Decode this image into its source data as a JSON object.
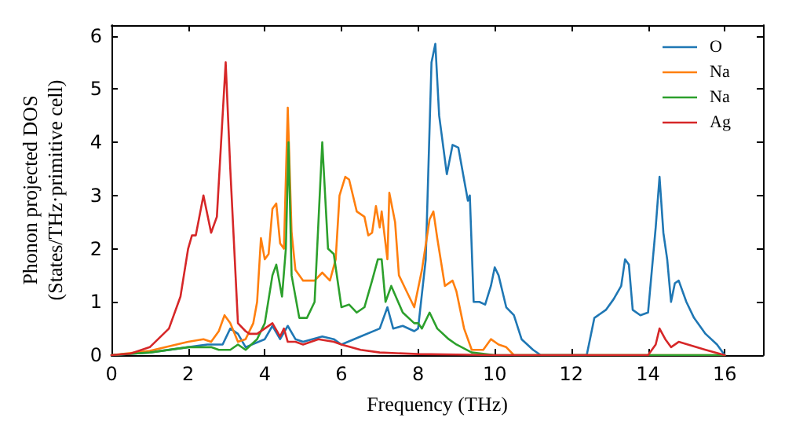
{
  "chart_data": {
    "type": "line",
    "xlabel": "Frequency (THz)",
    "ylabel": "Phonon projected DOS\n(States/THz·primitive cell)",
    "xlim": [
      0,
      17
    ],
    "xticks": [
      0,
      2,
      4,
      6,
      8,
      10,
      12,
      14,
      16
    ],
    "ylim": [
      0,
      6.2
    ],
    "yticks": [
      0,
      1,
      2,
      3,
      4,
      5,
      6
    ],
    "grid": false,
    "legend": "top right",
    "marker": "none",
    "line_style": "solid",
    "series": [
      {
        "name": "O",
        "color": "#1f77b4",
        "x": [
          0,
          1,
          2,
          2.5,
          2.9,
          3.1,
          3.3,
          3.5,
          4,
          4.2,
          4.4,
          4.6,
          4.8,
          5,
          5.5,
          5.8,
          6,
          6.5,
          7,
          7.2,
          7.35,
          7.6,
          7.9,
          8,
          8.2,
          8.35,
          8.45,
          8.55,
          8.75,
          8.9,
          9.05,
          9.2,
          9.3,
          9.35,
          9.45,
          9.6,
          9.75,
          9.9,
          10,
          10.1,
          10.2,
          10.3,
          10.5,
          10.7,
          11,
          11.2,
          12.4,
          12.6,
          12.9,
          13.1,
          13.3,
          13.4,
          13.5,
          13.6,
          13.8,
          14,
          14.2,
          14.3,
          14.4,
          14.5,
          14.6,
          14.7,
          14.8,
          15,
          15.2,
          15.5,
          15.8,
          16
        ],
        "values": [
          0,
          0.05,
          0.15,
          0.2,
          0.2,
          0.5,
          0.4,
          0.15,
          0.3,
          0.55,
          0.3,
          0.55,
          0.3,
          0.25,
          0.35,
          0.3,
          0.2,
          0.35,
          0.5,
          0.9,
          0.5,
          0.55,
          0.45,
          0.5,
          1.8,
          5.5,
          5.85,
          4.5,
          3.4,
          3.95,
          3.9,
          3.3,
          2.9,
          3,
          1,
          1,
          0.95,
          1.3,
          1.65,
          1.5,
          1.2,
          0.9,
          0.75,
          0.3,
          0.1,
          0,
          0,
          0.7,
          0.85,
          1.05,
          1.3,
          1.8,
          1.7,
          0.85,
          0.75,
          0.8,
          2.4,
          3.35,
          2.3,
          1.8,
          1,
          1.35,
          1.4,
          1,
          0.7,
          0.4,
          0.2,
          0
        ]
      },
      {
        "name": "Na",
        "color": "#ff7f0e",
        "x": [
          0,
          1,
          2,
          2.4,
          2.6,
          2.8,
          2.95,
          3.1,
          3.3,
          3.5,
          3.7,
          3.8,
          3.9,
          4,
          4.1,
          4.2,
          4.3,
          4.4,
          4.5,
          4.6,
          4.7,
          4.8,
          5,
          5.3,
          5.5,
          5.7,
          5.85,
          5.95,
          6.1,
          6.2,
          6.4,
          6.6,
          6.7,
          6.8,
          6.9,
          7,
          7.05,
          7.2,
          7.25,
          7.4,
          7.5,
          7.7,
          7.9,
          8.1,
          8.3,
          8.4,
          8.5,
          8.7,
          8.9,
          9,
          9.2,
          9.4,
          9.7,
          9.9,
          10.1,
          10.3,
          10.5,
          11,
          16
        ],
        "values": [
          0,
          0.08,
          0.25,
          0.3,
          0.25,
          0.45,
          0.75,
          0.6,
          0.25,
          0.3,
          0.6,
          1,
          2.2,
          1.8,
          1.9,
          2.75,
          2.85,
          2.1,
          2,
          4.65,
          2.3,
          1.6,
          1.4,
          1.4,
          1.55,
          1.4,
          1.8,
          3,
          3.35,
          3.3,
          2.7,
          2.6,
          2.25,
          2.3,
          2.8,
          2.4,
          2.7,
          1.8,
          3.05,
          2.5,
          1.5,
          1.2,
          0.9,
          1.6,
          2.55,
          2.7,
          2.2,
          1.3,
          1.4,
          1.2,
          0.5,
          0.1,
          0.1,
          0.3,
          0.2,
          0.15,
          0,
          0,
          0
        ]
      },
      {
        "name": "Na",
        "color": "#2ca02c",
        "x": [
          0,
          1,
          2,
          2.6,
          2.8,
          3.1,
          3.3,
          3.5,
          3.8,
          4,
          4.2,
          4.3,
          4.45,
          4.55,
          4.62,
          4.7,
          4.9,
          5.1,
          5.3,
          5.5,
          5.65,
          5.8,
          6,
          6.2,
          6.4,
          6.6,
          6.8,
          6.95,
          7.05,
          7.15,
          7.3,
          7.6,
          7.9,
          8,
          8.1,
          8.3,
          8.5,
          8.8,
          9,
          9.4,
          10,
          16
        ],
        "values": [
          0,
          0.05,
          0.15,
          0.15,
          0.1,
          0.1,
          0.2,
          0.1,
          0.3,
          0.6,
          1.5,
          1.7,
          1.1,
          2,
          4,
          1.5,
          0.7,
          0.7,
          1,
          4,
          2,
          1.9,
          0.9,
          0.95,
          0.8,
          0.9,
          1.4,
          1.8,
          1.8,
          1,
          1.3,
          0.8,
          0.6,
          0.6,
          0.5,
          0.8,
          0.5,
          0.3,
          0.2,
          0.05,
          0,
          0
        ]
      },
      {
        "name": "Ag",
        "color": "#d62728",
        "x": [
          0,
          0.5,
          1,
          1.5,
          1.8,
          2,
          2.1,
          2.2,
          2.4,
          2.6,
          2.75,
          2.9,
          2.98,
          3.1,
          3.3,
          3.5,
          3.6,
          3.8,
          4,
          4.2,
          4.4,
          4.5,
          4.6,
          4.8,
          5,
          5.4,
          5.8,
          6,
          6.5,
          7,
          8,
          9,
          10,
          14,
          14.2,
          14.3,
          14.45,
          14.6,
          14.8,
          15.5,
          16
        ],
        "values": [
          0,
          0.03,
          0.15,
          0.5,
          1.1,
          2,
          2.25,
          2.25,
          3,
          2.3,
          2.6,
          4.5,
          5.5,
          3.5,
          0.6,
          0.45,
          0.4,
          0.4,
          0.5,
          0.6,
          0.35,
          0.5,
          0.25,
          0.25,
          0.2,
          0.3,
          0.25,
          0.2,
          0.1,
          0.05,
          0.02,
          0.01,
          0,
          0,
          0.2,
          0.5,
          0.3,
          0.15,
          0.25,
          0.1,
          0
        ]
      }
    ]
  }
}
